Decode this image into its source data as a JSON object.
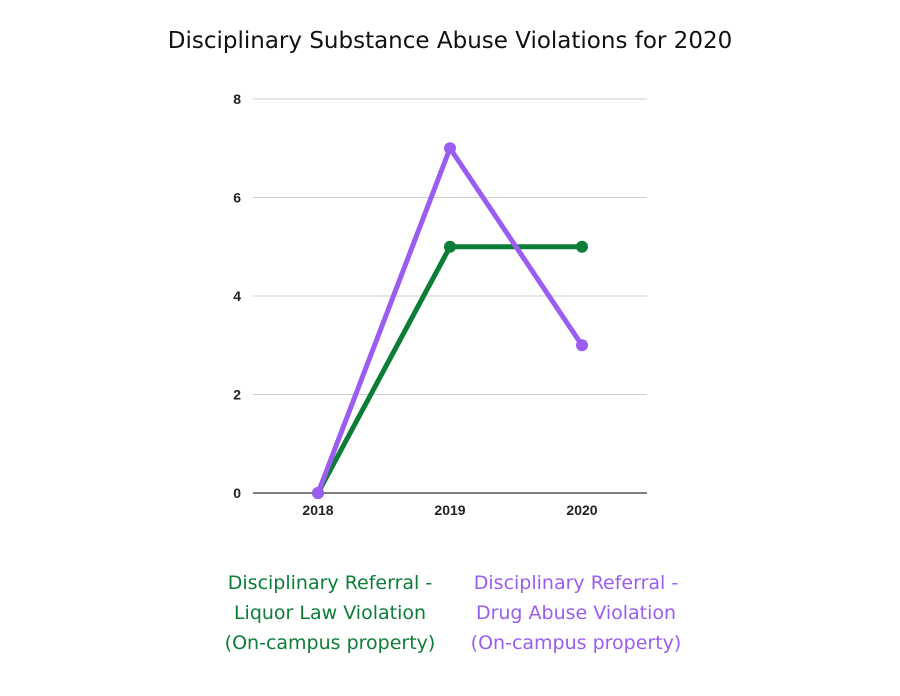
{
  "chart_data": {
    "type": "line",
    "title": "Disciplinary Substance Abuse Violations for 2020",
    "categories": [
      "2018",
      "2019",
      "2020"
    ],
    "ylim": [
      0,
      8
    ],
    "yticks": [
      "0",
      "2",
      "4",
      "6",
      "8"
    ],
    "grid": true,
    "legend_position": "bottom",
    "series": [
      {
        "name_lines": [
          "Disciplinary Referral -",
          "Liquor Law Violation",
          "(On-campus property)"
        ],
        "values": [
          0,
          5,
          5
        ],
        "color": "#0b7d37"
      },
      {
        "name_lines": [
          "Disciplinary Referral -",
          "Drug Abuse Violation",
          "(On-campus property)"
        ],
        "values": [
          0,
          7,
          3
        ],
        "color": "#9b5cf0"
      }
    ]
  }
}
